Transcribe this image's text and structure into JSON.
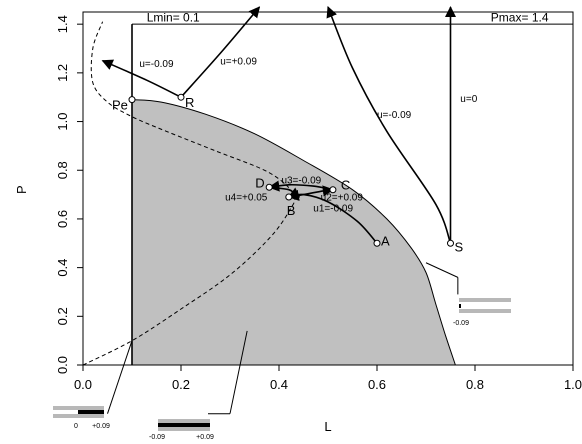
{
  "chart_data": {
    "type": "line",
    "title": "",
    "xlabel": "L",
    "ylabel": "P",
    "xlim": [
      0.0,
      1.0
    ],
    "ylim": [
      0.0,
      1.45
    ],
    "grid": false,
    "x_ticks": [
      0.0,
      0.2,
      0.4,
      0.6,
      0.8,
      1.0
    ],
    "x_tick_labels": [
      "0.0",
      "0.2",
      "0.4",
      "0.6",
      "0.8",
      "1.0"
    ],
    "y_ticks": [
      0.0,
      0.2,
      0.4,
      0.6,
      0.8,
      1.0,
      1.2,
      1.4
    ],
    "y_tick_labels": [
      "0.0",
      "0.2",
      "0.4",
      "0.6",
      "0.8",
      "1.0",
      "1.2",
      "1.4"
    ],
    "colors": {
      "region_fill": "#c0c0c0",
      "boundary": "#000000",
      "bar_grey": "#b8b8b8"
    },
    "constraints": {
      "lmin": {
        "value": 0.1,
        "label": "Lmin= 0.1"
      },
      "pmax": {
        "value": 1.4,
        "label": "Pmax= 1.4"
      }
    },
    "viability_boundary": [
      [
        0.1,
        1.09
      ],
      [
        0.16,
        1.08
      ],
      [
        0.25,
        1.03
      ],
      [
        0.35,
        0.95
      ],
      [
        0.45,
        0.84
      ],
      [
        0.55,
        0.72
      ],
      [
        0.62,
        0.6
      ],
      [
        0.67,
        0.48
      ],
      [
        0.7,
        0.38
      ],
      [
        0.72,
        0.25
      ],
      [
        0.74,
        0.12
      ],
      [
        0.76,
        0.0
      ]
    ],
    "dashed_curve": [
      [
        0.0,
        0.0
      ],
      [
        0.1,
        0.1
      ],
      [
        0.2,
        0.23
      ],
      [
        0.3,
        0.37
      ],
      [
        0.38,
        0.52
      ],
      [
        0.42,
        0.63
      ],
      [
        0.43,
        0.7
      ],
      [
        0.38,
        0.79
      ],
      [
        0.27,
        0.88
      ],
      [
        0.17,
        0.96
      ],
      [
        0.1,
        1.02
      ],
      [
        0.05,
        1.08
      ],
      [
        0.02,
        1.16
      ],
      [
        0.02,
        1.3
      ],
      [
        0.04,
        1.41
      ]
    ],
    "trajectories": [
      {
        "label": "u1=-0.09",
        "points": [
          [
            0.6,
            0.5
          ],
          [
            0.56,
            0.59
          ],
          [
            0.5,
            0.67
          ],
          [
            0.45,
            0.7
          ],
          [
            0.42,
            0.69
          ]
        ]
      },
      {
        "label": "u2=+0.09",
        "points": [
          [
            0.42,
            0.69
          ],
          [
            0.45,
            0.7
          ],
          [
            0.49,
            0.715
          ],
          [
            0.51,
            0.72
          ]
        ]
      },
      {
        "label": "u3=-0.09",
        "points": [
          [
            0.51,
            0.72
          ],
          [
            0.47,
            0.735
          ],
          [
            0.42,
            0.74
          ],
          [
            0.38,
            0.73
          ]
        ]
      },
      {
        "label": "u4=+0.05",
        "points": [
          [
            0.38,
            0.73
          ],
          [
            0.42,
            0.72
          ],
          [
            0.43,
            0.7
          ],
          [
            0.42,
            0.69
          ]
        ]
      },
      {
        "label": "u=-0.09",
        "points": [
          [
            0.2,
            1.1
          ],
          [
            0.13,
            1.17
          ],
          [
            0.04,
            1.25
          ]
        ]
      },
      {
        "label": "u=+0.09",
        "points": [
          [
            0.2,
            1.1
          ],
          [
            0.28,
            1.28
          ],
          [
            0.36,
            1.47
          ]
        ]
      },
      {
        "label": "u=-0.09",
        "points": [
          [
            0.75,
            0.5
          ],
          [
            0.72,
            0.66
          ],
          [
            0.62,
            0.96
          ],
          [
            0.55,
            1.22
          ],
          [
            0.5,
            1.47
          ]
        ]
      },
      {
        "label": "u=0",
        "points": [
          [
            0.75,
            0.5
          ],
          [
            0.75,
            0.9
          ],
          [
            0.75,
            1.47
          ]
        ]
      }
    ],
    "points": [
      {
        "label": "A",
        "x": 0.6,
        "y": 0.5
      },
      {
        "label": "B",
        "x": 0.42,
        "y": 0.69
      },
      {
        "label": "C",
        "x": 0.51,
        "y": 0.72
      },
      {
        "label": "D",
        "x": 0.38,
        "y": 0.73
      },
      {
        "label": "R",
        "x": 0.2,
        "y": 1.1
      },
      {
        "label": "S",
        "x": 0.75,
        "y": 0.5
      },
      {
        "label": "Pe",
        "x": 0.1,
        "y": 1.09
      }
    ],
    "control_bars": [
      {
        "name": "bar-lmin",
        "labels": [
          "0",
          "+0.09"
        ]
      },
      {
        "name": "bar-interior",
        "labels": [
          "-0.09",
          "+0.09"
        ]
      },
      {
        "name": "bar-boundary",
        "labels": [
          "-0.09"
        ]
      }
    ]
  }
}
